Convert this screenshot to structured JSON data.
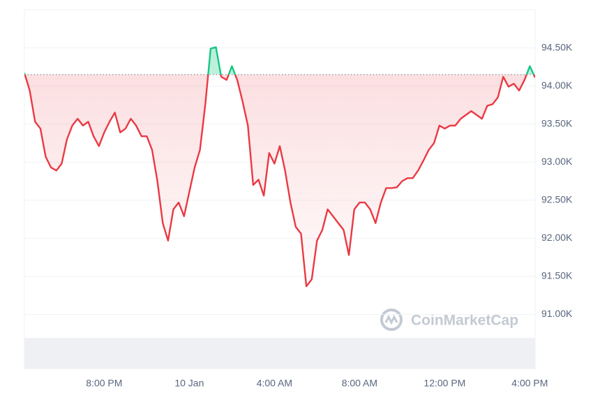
{
  "chart_data": {
    "type": "line",
    "watermark": "CoinMarketCap",
    "baseline": 94150,
    "up_color": "#16c784",
    "down_color": "#ea3943",
    "values": [
      94170,
      93940,
      93530,
      93440,
      93070,
      92930,
      92890,
      92980,
      93300,
      93480,
      93570,
      93480,
      93530,
      93340,
      93210,
      93390,
      93530,
      93650,
      93390,
      93440,
      93570,
      93480,
      93340,
      93340,
      93160,
      92750,
      92200,
      91970,
      92380,
      92470,
      92290,
      92610,
      92930,
      93160,
      93760,
      94490,
      94510,
      94120,
      94080,
      94260,
      94080,
      93800,
      93480,
      92700,
      92770,
      92560,
      93120,
      92980,
      93210,
      92890,
      92470,
      92150,
      92060,
      91370,
      91460,
      91970,
      92110,
      92380,
      92290,
      92200,
      92110,
      91780,
      92380,
      92470,
      92470,
      92380,
      92200,
      92470,
      92660,
      92660,
      92670,
      92750,
      92790,
      92790,
      92890,
      93020,
      93160,
      93250,
      93480,
      93440,
      93480,
      93480,
      93570,
      93620,
      93670,
      93620,
      93570,
      93740,
      93760,
      93850,
      94120,
      93990,
      94030,
      93940,
      94080,
      94260,
      94110
    ],
    "xlim": [
      0,
      96
    ],
    "xticks": [
      {
        "value": 15,
        "label": "8:00 PM"
      },
      {
        "value": 31,
        "label": "10 Jan"
      },
      {
        "value": 47,
        "label": "4:00 AM"
      },
      {
        "value": 63,
        "label": "8:00 AM"
      },
      {
        "value": 79,
        "label": "12:00 PM"
      },
      {
        "value": 95,
        "label": "4:00 PM"
      }
    ],
    "ylim": [
      90290,
      95000
    ],
    "yticks": [
      {
        "value": 91000,
        "label": "91.00K"
      },
      {
        "value": 91500,
        "label": "91.50K"
      },
      {
        "value": 92000,
        "label": "92.00K"
      },
      {
        "value": 92500,
        "label": "92.50K"
      },
      {
        "value": 93000,
        "label": "93.00K"
      },
      {
        "value": 93500,
        "label": "93.50K"
      },
      {
        "value": 94000,
        "label": "94.00K"
      },
      {
        "value": 94500,
        "label": "94.50K"
      }
    ],
    "grid": true
  }
}
